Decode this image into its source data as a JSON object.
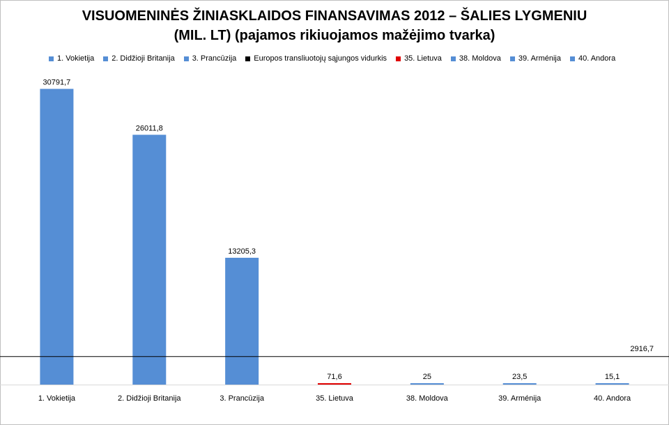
{
  "chart_data": {
    "type": "bar",
    "title_line1": "VISUOMENINĖS ŽINIASKLAIDOS FINANSAVIMAS 2012 – ŠALIES LYGMENIU",
    "title_line2": "(MIL. LT) (pajamos rikiuojamos mažėjimo tvarka)",
    "categories": [
      "1. Vokietija",
      "2. Didžioji Britanija",
      "3. Prancūzija",
      "35. Lietuva",
      "38. Moldova",
      "39. Arménija",
      "40. Andora"
    ],
    "values": [
      30791.7,
      26011.8,
      13205.3,
      71.6,
      25,
      23.5,
      15.1
    ],
    "value_labels": [
      "30791,7",
      "26011,8",
      "13205,3",
      "71,6",
      "25",
      "23,5",
      "15,1"
    ],
    "colors": [
      "#558ed5",
      "#558ed5",
      "#558ed5",
      "#e00000",
      "#558ed5",
      "#558ed5",
      "#558ed5"
    ],
    "reference_line": {
      "name": "Europos transliuotojų sąjungos vidurkis",
      "value": 2916.7,
      "label": "2916,7",
      "color": "#000000"
    },
    "legend": [
      {
        "label": "1. Vokietija",
        "color": "#558ed5"
      },
      {
        "label": "2. Didžioji Britanija",
        "color": "#558ed5"
      },
      {
        "label": "3. Prancūzija",
        "color": "#558ed5"
      },
      {
        "label": "Europos transliuotojų sąjungos vidurkis",
        "color": "#000000"
      },
      {
        "label": "35. Lietuva",
        "color": "#e00000"
      },
      {
        "label": "38. Moldova",
        "color": "#558ed5"
      },
      {
        "label": "39. Arménija",
        "color": "#558ed5"
      },
      {
        "label": "40. Andora",
        "color": "#558ed5"
      }
    ],
    "legend_position": "top",
    "ylim": [
      0,
      32500
    ],
    "grid": false,
    "xlabel": "",
    "ylabel": ""
  }
}
